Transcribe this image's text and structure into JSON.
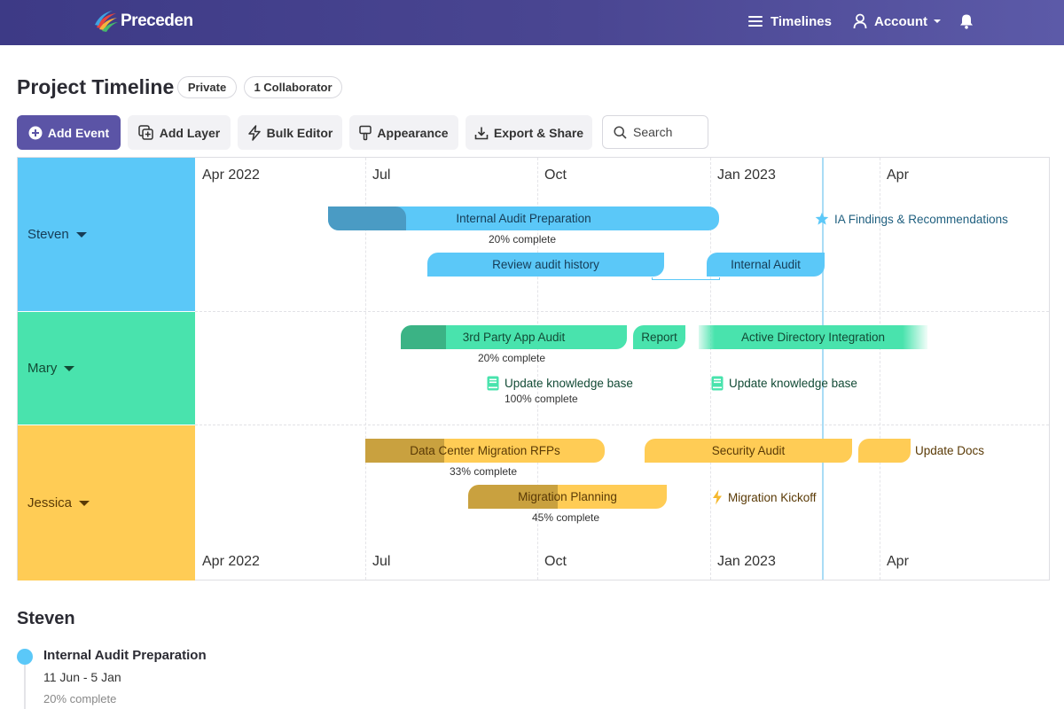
{
  "header": {
    "logo_text": "Preceden",
    "nav": {
      "timelines": "Timelines",
      "account": "Account"
    }
  },
  "title_row": {
    "title": "Project Timeline",
    "privacy": "Private",
    "collaborators": "1 Collaborator"
  },
  "toolbar": {
    "add_event": "Add Event",
    "add_layer": "Add Layer",
    "bulk_editor": "Bulk Editor",
    "appearance": "Appearance",
    "export_share": "Export & Share",
    "search_placeholder": "Search"
  },
  "timeline": {
    "months_top": [
      "Apr 2022",
      "Jul",
      "Oct",
      "Jan 2023",
      "Apr"
    ],
    "months_bottom": [
      "Apr 2022",
      "Jul",
      "Oct",
      "Jan 2023",
      "Apr"
    ],
    "lanes": [
      {
        "name": "Steven",
        "color": "#5bc8f8"
      },
      {
        "name": "Mary",
        "color": "#49e3ad"
      },
      {
        "name": "Jessica",
        "color": "#ffcc55"
      }
    ],
    "events": {
      "internal_audit_prep": {
        "label": "Internal Audit Preparation",
        "progress": 0.2,
        "progress_text": "20% complete"
      },
      "ia_findings": {
        "label": "IA Findings & Recommendations"
      },
      "review_audit_history": {
        "label": "Review audit history"
      },
      "internal_audit": {
        "label": "Internal Audit"
      },
      "third_party_app_audit": {
        "label": "3rd Party App Audit",
        "progress": 0.2,
        "progress_text": "20% complete"
      },
      "report": {
        "label": "Report"
      },
      "active_directory": {
        "label": "Active Directory Integration"
      },
      "update_kb_1": {
        "label": "Update knowledge base",
        "progress_text": "100% complete"
      },
      "update_kb_2": {
        "label": "Update knowledge base"
      },
      "dc_migration_rfps": {
        "label": "Data Center Migration RFPs",
        "progress": 0.33,
        "progress_text": "33% complete"
      },
      "security_audit": {
        "label": "Security Audit"
      },
      "update_docs": {
        "label": "Update Docs"
      },
      "migration_planning": {
        "label": "Migration Planning",
        "progress": 0.45,
        "progress_text": "45% complete"
      },
      "migration_kickoff": {
        "label": "Migration Kickoff"
      }
    }
  },
  "details": {
    "section_title": "Steven",
    "first_event": {
      "title": "Internal Audit Preparation",
      "dates": "11 Jun - 5 Jan",
      "progress_text": "20% complete"
    }
  }
}
